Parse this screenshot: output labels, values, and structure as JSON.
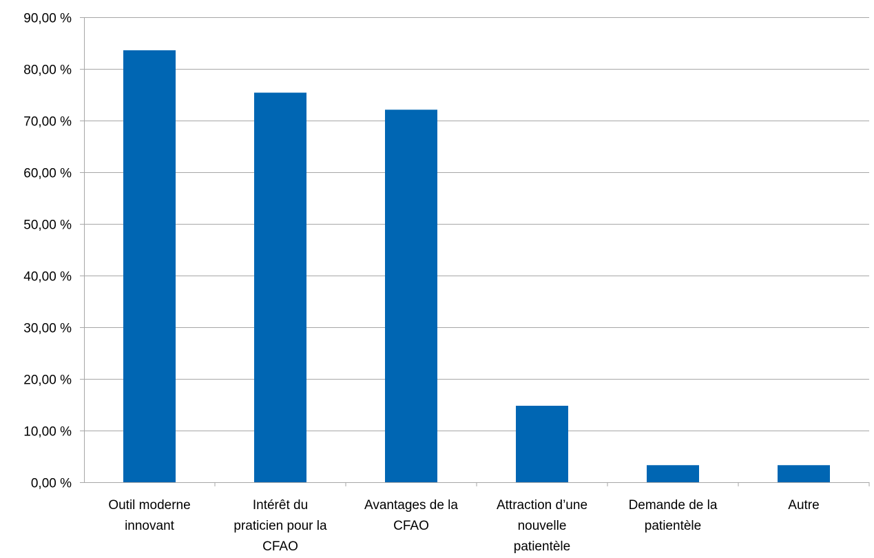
{
  "chart_data": {
    "type": "bar",
    "title": "",
    "xlabel": "",
    "ylabel": "",
    "categories": [
      [
        "Outil moderne",
        "innovant"
      ],
      [
        "Intérêt du",
        "praticien pour la",
        "CFAO"
      ],
      [
        "Avantages de la",
        "CFAO"
      ],
      [
        "Attraction d’une",
        "nouvelle",
        "patientèle"
      ],
      [
        "Demande de la",
        "patientèle"
      ],
      [
        "Autre"
      ]
    ],
    "values": [
      83.6,
      75.4,
      72.1,
      14.8,
      3.3,
      3.3
    ],
    "ylim": [
      0,
      90
    ],
    "yticks": [
      "0,00 %",
      "10,00 %",
      "20,00 %",
      "30,00 %",
      "40,00 %",
      "50,00 %",
      "60,00 %",
      "70,00 %",
      "80,00 %",
      "90,00 %"
    ],
    "grid": true,
    "legend": "none",
    "colors": {
      "bar": "#0066b3",
      "grid": "#a6a6a6",
      "axis": "#a6a6a6"
    }
  }
}
